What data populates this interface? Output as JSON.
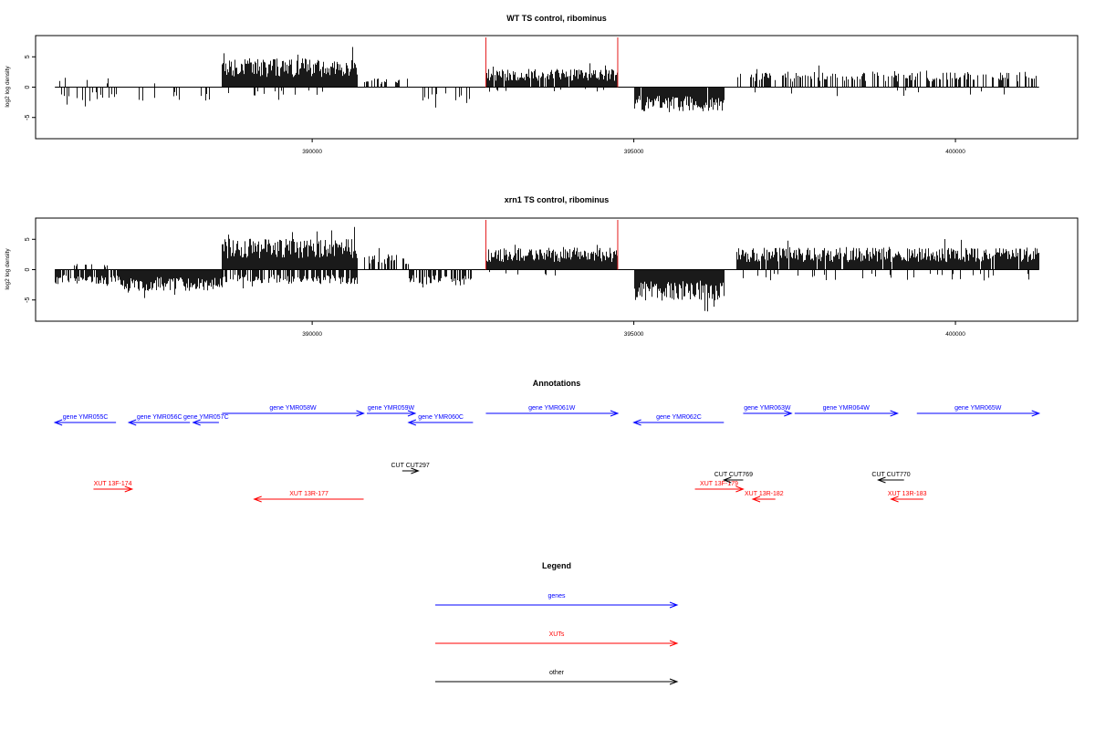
{
  "chart_data": [
    {
      "type": "bar",
      "title": "WT TS control, ribominus",
      "xlabel": "",
      "ylabel": "log2 log density",
      "xlim": [
        385700,
        401900
      ],
      "ylim": [
        -8.5,
        8.5
      ],
      "xticks": [
        390000,
        395000,
        400000
      ],
      "xtick_labels": [
        "390000",
        "395000",
        "400000"
      ],
      "yticks": [
        -5,
        0,
        5
      ],
      "ytick_labels": [
        "-5",
        "0",
        "5"
      ],
      "baseline": 0,
      "x_range": [
        386000,
        401300
      ],
      "marker_lines": {
        "x": [
          392700,
          394750
        ],
        "y_top": 8.2,
        "color": "#e41a1c"
      },
      "segments": [
        {
          "x": [
            386000,
            388400
          ],
          "strand": "-",
          "density": 0.18,
          "amp": 2.3
        },
        {
          "x": [
            386000,
            388400
          ],
          "strand": "+",
          "density": 0.02,
          "amp": 1.6
        },
        {
          "x": [
            388600,
            390700
          ],
          "strand": "+",
          "density": 1.0,
          "amp": 4.8
        },
        {
          "x": [
            388600,
            390700
          ],
          "strand": "-",
          "density": 0.1,
          "amp": 1.5
        },
        {
          "x": [
            390800,
            391500
          ],
          "strand": "+",
          "density": 0.25,
          "amp": 1.5
        },
        {
          "x": [
            391700,
            392500
          ],
          "strand": "-",
          "density": 0.25,
          "amp": 2.8
        },
        {
          "x": [
            392700,
            394750
          ],
          "strand": "+",
          "density": 0.9,
          "amp": 3.0
        },
        {
          "x": [
            392700,
            394750
          ],
          "strand": "-",
          "density": 0.06,
          "amp": 0.8
        },
        {
          "x": [
            395000,
            396400
          ],
          "strand": "-",
          "density": 0.95,
          "amp": 4.0
        },
        {
          "x": [
            396600,
            401300
          ],
          "strand": "+",
          "density": 0.45,
          "amp": 2.6
        },
        {
          "x": [
            396600,
            401300
          ],
          "strand": "-",
          "density": 0.05,
          "amp": 1.5
        }
      ]
    },
    {
      "type": "bar",
      "title": "xrn1 TS control, ribominus",
      "xlabel": "",
      "ylabel": "log2 log density",
      "xlim": [
        385700,
        401900
      ],
      "ylim": [
        -8.5,
        8.5
      ],
      "xticks": [
        390000,
        395000,
        400000
      ],
      "xtick_labels": [
        "390000",
        "395000",
        "400000"
      ],
      "yticks": [
        -5,
        0,
        5
      ],
      "ytick_labels": [
        "-5",
        "0",
        "5"
      ],
      "baseline": 0,
      "x_range": [
        386000,
        401300
      ],
      "marker_lines": {
        "x": [
          392700,
          394750
        ],
        "y_top": 8.2,
        "color": "#e41a1c"
      },
      "segments": [
        {
          "x": [
            386000,
            387000
          ],
          "strand": "-",
          "density": 0.8,
          "amp": 2.4
        },
        {
          "x": [
            386000,
            387000
          ],
          "strand": "+",
          "density": 0.15,
          "amp": 1.0
        },
        {
          "x": [
            387000,
            388600
          ],
          "strand": "-",
          "density": 1.0,
          "amp": 3.5
        },
        {
          "x": [
            388600,
            390700
          ],
          "strand": "+",
          "density": 1.0,
          "amp": 5.2
        },
        {
          "x": [
            388600,
            390700
          ],
          "strand": "-",
          "density": 0.7,
          "amp": 2.4
        },
        {
          "x": [
            390800,
            391500
          ],
          "strand": "+",
          "density": 0.6,
          "amp": 2.6
        },
        {
          "x": [
            391500,
            392500
          ],
          "strand": "-",
          "density": 0.6,
          "amp": 2.6
        },
        {
          "x": [
            392700,
            394750
          ],
          "strand": "+",
          "density": 1.0,
          "amp": 3.6
        },
        {
          "x": [
            392700,
            394750
          ],
          "strand": "-",
          "density": 0.06,
          "amp": 1.0
        },
        {
          "x": [
            395000,
            396400
          ],
          "strand": "-",
          "density": 1.0,
          "amp": 5.2
        },
        {
          "x": [
            396600,
            401300
          ],
          "strand": "+",
          "density": 0.95,
          "amp": 3.6
        },
        {
          "x": [
            396600,
            401300
          ],
          "strand": "-",
          "density": 0.12,
          "amp": 1.8
        }
      ]
    }
  ],
  "annotations": {
    "title": "Annotations",
    "genes": [
      {
        "label": "gene YMR055C",
        "x_start": 386000,
        "x_end": 386950,
        "direction": "left"
      },
      {
        "label": "gene YMR056C",
        "x_start": 387150,
        "x_end": 388100,
        "direction": "left"
      },
      {
        "label": "gene YMR057C",
        "x_start": 388150,
        "x_end": 388550,
        "direction": "left"
      },
      {
        "label": "gene YMR058W",
        "x_start": 388600,
        "x_end": 390800,
        "direction": "right"
      },
      {
        "label": "gene YMR059W",
        "x_start": 390850,
        "x_end": 391600,
        "direction": "right"
      },
      {
        "label": "gene YMR060C",
        "x_start": 391500,
        "x_end": 392500,
        "direction": "left"
      },
      {
        "label": "gene YMR061W",
        "x_start": 392700,
        "x_end": 394750,
        "direction": "right"
      },
      {
        "label": "gene YMR062C",
        "x_start": 395000,
        "x_end": 396400,
        "direction": "left"
      },
      {
        "label": "gene YMR063W",
        "x_start": 396700,
        "x_end": 397450,
        "direction": "right"
      },
      {
        "label": "gene YMR064W",
        "x_start": 397500,
        "x_end": 399100,
        "direction": "right"
      },
      {
        "label": "gene YMR065W",
        "x_start": 399400,
        "x_end": 401300,
        "direction": "right"
      }
    ],
    "xuts": [
      {
        "label": "XUT 13F-174",
        "x_start": 386600,
        "x_end": 387200,
        "direction": "right"
      },
      {
        "label": "XUT 13R-177",
        "x_start": 389100,
        "x_end": 390800,
        "direction": "left"
      },
      {
        "label": "XUT 13F-179",
        "x_start": 395950,
        "x_end": 396700,
        "direction": "right"
      },
      {
        "label": "XUT 13R-182",
        "x_start": 396850,
        "x_end": 397200,
        "direction": "left"
      },
      {
        "label": "XUT 13R-183",
        "x_start": 399000,
        "x_end": 399500,
        "direction": "left"
      }
    ],
    "other": [
      {
        "label": "CUT CUT297",
        "x_start": 391400,
        "x_end": 391650,
        "direction": "right"
      },
      {
        "label": "CUT CUT769",
        "x_start": 396400,
        "x_end": 396700,
        "direction": "left"
      },
      {
        "label": "CUT CUT770",
        "x_start": 398800,
        "x_end": 399200,
        "direction": "left"
      }
    ]
  },
  "legend": {
    "title": "Legend",
    "items": [
      {
        "label": "genes",
        "color": "#0000ff"
      },
      {
        "label": "XUTs",
        "color": "#ff0000"
      },
      {
        "label": "other",
        "color": "#000000"
      }
    ]
  },
  "colors": {
    "genes": "#0000ff",
    "xuts": "#ff0000",
    "other": "#000000",
    "marker": "#e41a1c"
  }
}
